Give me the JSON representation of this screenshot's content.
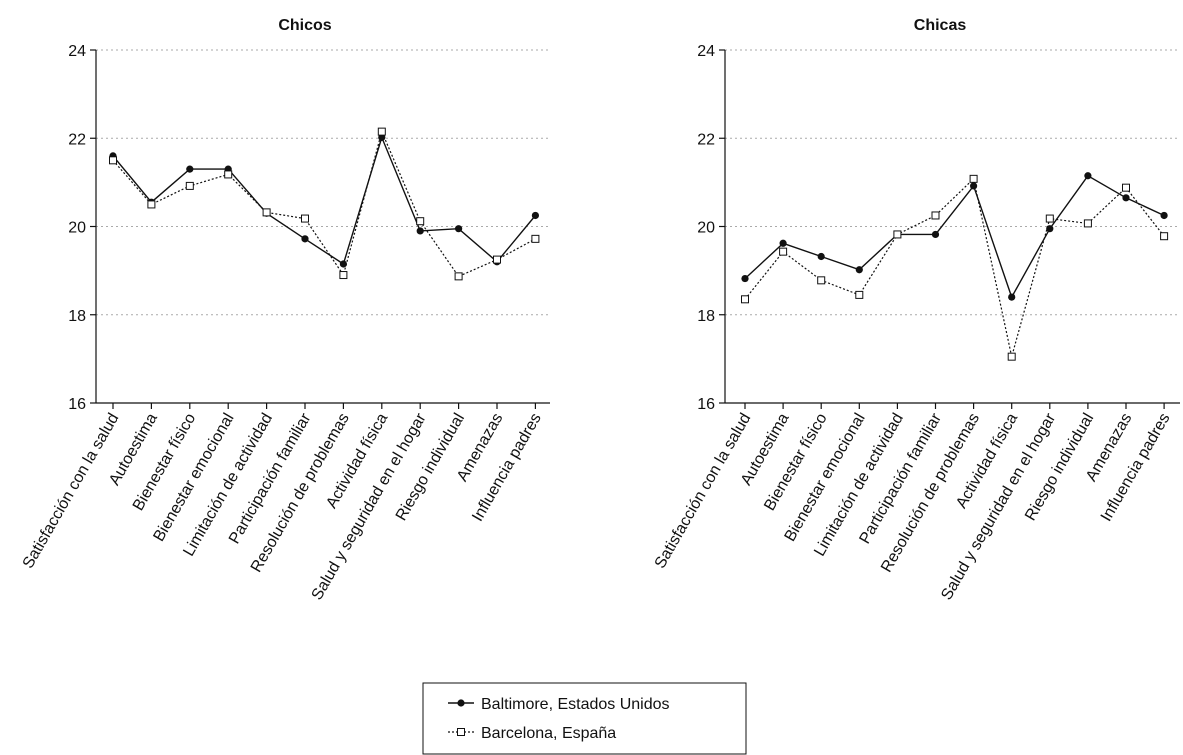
{
  "chart_data": [
    {
      "type": "line",
      "title": "Chicos",
      "xlabel": "",
      "ylabel": "",
      "ylim": [
        16,
        24
      ],
      "yticks": [
        16,
        18,
        20,
        22,
        24
      ],
      "grid": "horizontal dotted",
      "categories": [
        "Satisfacción con la salud",
        "Autoestima",
        "Bienestar físico",
        "Bienestar emocional",
        "Limitación de actividad",
        "Participación familiar",
        "Resolución de problemas",
        "Actividad física",
        "Salud y seguridad en el hogar",
        "Riesgo individual",
        "Amenazas",
        "Influencia padres"
      ],
      "series": [
        {
          "name": "Baltimore, Estados Unidos",
          "values": [
            21.6,
            20.55,
            21.3,
            21.3,
            20.3,
            19.72,
            19.15,
            22.02,
            19.9,
            19.95,
            19.2,
            20.25
          ]
        },
        {
          "name": "Barcelona, España",
          "values": [
            21.5,
            20.5,
            20.92,
            21.18,
            20.32,
            20.18,
            18.9,
            22.15,
            20.12,
            18.87,
            19.25,
            19.72
          ]
        }
      ]
    },
    {
      "type": "line",
      "title": "Chicas",
      "xlabel": "",
      "ylabel": "",
      "ylim": [
        16,
        24
      ],
      "yticks": [
        16,
        18,
        20,
        22,
        24
      ],
      "grid": "horizontal dotted",
      "categories": [
        "Satisfacción con la salud",
        "Autoestima",
        "Bienestar físico",
        "Bienestar emocional",
        "Limitación de actividad",
        "Participación familiar",
        "Resolución de problemas",
        "Actividad física",
        "Salud y seguridad en el hogar",
        "Riesgo individual",
        "Amenazas",
        "Influencia padres"
      ],
      "series": [
        {
          "name": "Baltimore, Estados Unidos",
          "values": [
            18.82,
            19.62,
            19.32,
            19.02,
            19.82,
            19.82,
            20.92,
            18.4,
            19.95,
            21.15,
            20.65,
            20.25
          ]
        },
        {
          "name": "Barcelona, España",
          "values": [
            18.35,
            19.43,
            18.78,
            18.45,
            19.82,
            20.25,
            21.08,
            17.05,
            20.18,
            20.07,
            20.88,
            19.78
          ]
        }
      ]
    }
  ],
  "legend": {
    "placement": "bottom-center",
    "items": [
      {
        "label": "Baltimore, Estados Unidos",
        "style": "solid-filled-circle"
      },
      {
        "label": "Barcelona, España",
        "style": "dotted-open-square"
      }
    ]
  },
  "colors": {
    "line": "#111111",
    "grid": "#aaaaaa",
    "marker_fill_open": "#ffffff"
  }
}
